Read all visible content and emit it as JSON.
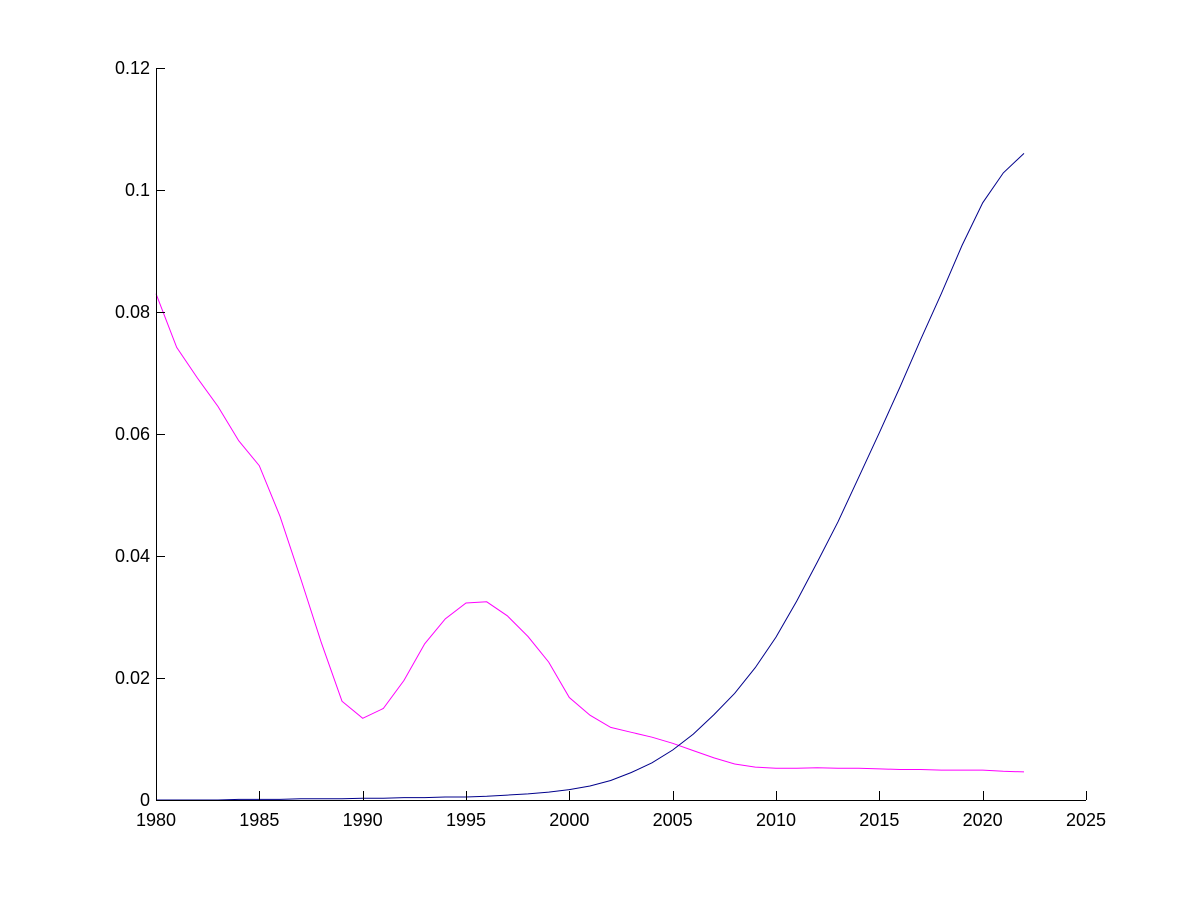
{
  "chart_data": {
    "type": "line",
    "title": "",
    "xlabel": "",
    "ylabel": "",
    "xlim": [
      1980,
      2025
    ],
    "ylim": [
      0,
      0.12
    ],
    "x_ticks": [
      1980,
      1985,
      1990,
      1995,
      2000,
      2005,
      2010,
      2015,
      2020,
      2025
    ],
    "x_tick_labels": [
      "1980",
      "1985",
      "1990",
      "1995",
      "2000",
      "2005",
      "2010",
      "2015",
      "2020",
      "2025"
    ],
    "y_ticks": [
      0,
      0.02,
      0.04,
      0.06,
      0.08,
      0.1,
      0.12
    ],
    "y_tick_labels": [
      "0",
      "0.02",
      "0.04",
      "0.06",
      "0.08",
      "0.1",
      "0.12"
    ],
    "grid": false,
    "legend": "none",
    "x": [
      1980,
      1981,
      1982,
      1983,
      1984,
      1985,
      1986,
      1987,
      1988,
      1989,
      1990,
      1991,
      1992,
      1993,
      1994,
      1995,
      1996,
      1997,
      1998,
      1999,
      2000,
      2001,
      2002,
      2003,
      2004,
      2005,
      2006,
      2007,
      2008,
      2009,
      2010,
      2011,
      2012,
      2013,
      2014,
      2015,
      2016,
      2017,
      2018,
      2019,
      2020,
      2021,
      2022
    ],
    "series": [
      {
        "color": "#ff00ff",
        "values": [
          0.083,
          0.0742,
          0.0692,
          0.0645,
          0.0589,
          0.0548,
          0.0465,
          0.0363,
          0.0258,
          0.0162,
          0.0134,
          0.015,
          0.0196,
          0.0256,
          0.0297,
          0.0323,
          0.0325,
          0.0302,
          0.0268,
          0.0226,
          0.0168,
          0.0139,
          0.0119,
          0.0111,
          0.0103,
          0.0093,
          0.0081,
          0.0069,
          0.0059,
          0.0054,
          0.0052,
          0.0052,
          0.0053,
          0.0052,
          0.0052,
          0.0051,
          0.005,
          0.005,
          0.0049,
          0.0049,
          0.0049,
          0.0047,
          0.0046
        ]
      },
      {
        "color": "#00008b",
        "values": [
          0.0,
          0.0,
          0.0,
          0.0,
          0.0001,
          0.0001,
          0.0001,
          0.0002,
          0.0002,
          0.0002,
          0.0003,
          0.0003,
          0.0004,
          0.0004,
          0.0005,
          0.0005,
          0.0006,
          0.0008,
          0.001,
          0.0013,
          0.0017,
          0.0023,
          0.0032,
          0.0045,
          0.0061,
          0.0082,
          0.0108,
          0.014,
          0.0175,
          0.0217,
          0.0267,
          0.0326,
          0.039,
          0.0456,
          0.0529,
          0.0602,
          0.0677,
          0.0755,
          0.083,
          0.0909,
          0.0979,
          0.1028,
          0.106
        ]
      }
    ]
  }
}
